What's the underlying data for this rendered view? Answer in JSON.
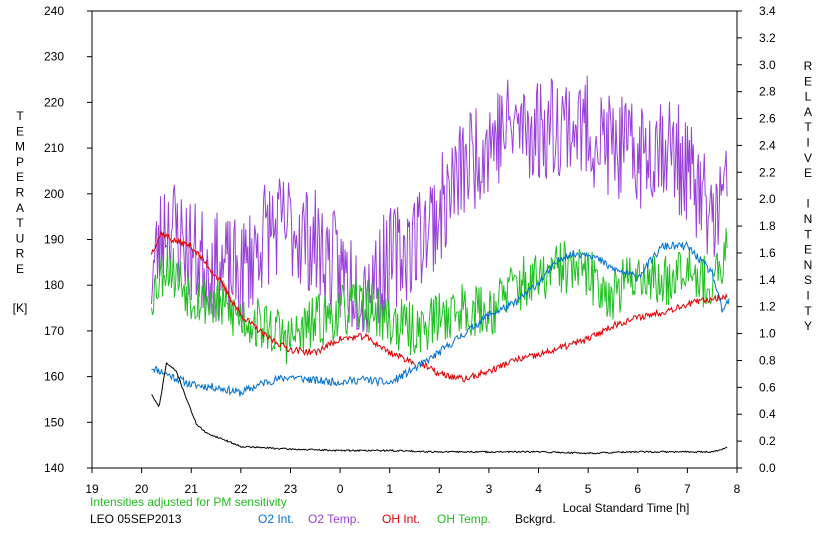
{
  "chart_data": {
    "type": "line",
    "xlabel": "Local Standard Time [h]",
    "x_ticks": [
      "19",
      "20",
      "21",
      "22",
      "23",
      "0",
      "1",
      "2",
      "3",
      "4",
      "5",
      "6",
      "7",
      "8"
    ],
    "xlim": [
      19,
      32
    ],
    "left_axis": {
      "label": "TEMPERATURE",
      "unit": "[K]",
      "ylim": [
        140,
        240
      ],
      "ticks": [
        "140",
        "150",
        "160",
        "170",
        "180",
        "190",
        "200",
        "210",
        "220",
        "230",
        "240"
      ]
    },
    "right_axis": {
      "label": "RELATIVE INTENSITY",
      "ylim": [
        0,
        3.4
      ],
      "ticks": [
        "0.0",
        "0.2",
        "0.4",
        "0.6",
        "0.8",
        "1.0",
        "1.2",
        "1.4",
        "1.6",
        "1.8",
        "2.0",
        "2.2",
        "2.4",
        "2.6",
        "2.8",
        "3.0",
        "3.2",
        "3.4"
      ]
    },
    "note": "Intensities adjusted for PM sensitivity",
    "station": "LEO 05SEP2013",
    "series": [
      {
        "name": "O2 Int.",
        "color": "#0070d0",
        "axis": "right",
        "noise": 0.03,
        "seed": 11,
        "x": [
          20.2,
          20.5,
          21.0,
          21.5,
          22.0,
          22.5,
          23.0,
          23.5,
          24.0,
          24.5,
          25.0,
          25.4,
          25.6,
          26.0,
          26.5,
          27.0,
          27.5,
          28.0,
          28.5,
          29.0,
          29.5,
          30.0,
          30.5,
          31.0,
          31.5,
          31.7,
          31.85
        ],
        "y": [
          0.75,
          0.7,
          0.62,
          0.6,
          0.56,
          0.64,
          0.68,
          0.65,
          0.64,
          0.66,
          0.63,
          0.72,
          0.76,
          0.86,
          1.0,
          1.14,
          1.22,
          1.38,
          1.58,
          1.6,
          1.48,
          1.42,
          1.65,
          1.65,
          1.45,
          1.17,
          1.25
        ]
      },
      {
        "name": "O2 Temp.",
        "color": "#9940d8",
        "axis": "left",
        "noise": 12,
        "seed": 23,
        "x": [
          20.2,
          20.5,
          21.0,
          21.5,
          22.0,
          22.5,
          23.0,
          23.5,
          24.0,
          24.5,
          25.0,
          25.5,
          26.0,
          26.5,
          27.0,
          27.5,
          28.0,
          28.5,
          29.0,
          29.5,
          30.0,
          30.5,
          31.0,
          31.5,
          31.8
        ],
        "y": [
          182,
          195,
          187,
          184,
          182,
          192,
          193,
          189,
          183,
          180,
          185,
          190,
          196,
          206,
          212,
          215,
          214,
          216,
          214,
          210,
          208,
          212,
          205,
          194,
          200
        ]
      },
      {
        "name": "OH Int.",
        "color": "#e00000",
        "axis": "right",
        "noise": 0.025,
        "seed": 37,
        "gap": [
          25.5,
          25.6
        ],
        "x": [
          20.2,
          20.4,
          20.6,
          21.0,
          21.3,
          21.6,
          22.0,
          22.5,
          23.0,
          23.5,
          24.0,
          24.5,
          25.0,
          25.4,
          25.6,
          26.0,
          26.5,
          27.0,
          27.5,
          28.0,
          28.5,
          29.0,
          29.5,
          30.0,
          30.5,
          31.0,
          31.5,
          31.8
        ],
        "y": [
          1.6,
          1.75,
          1.7,
          1.65,
          1.52,
          1.38,
          1.14,
          0.98,
          0.88,
          0.86,
          0.96,
          0.98,
          0.86,
          0.8,
          0.78,
          0.7,
          0.66,
          0.72,
          0.8,
          0.84,
          0.9,
          0.96,
          1.06,
          1.12,
          1.16,
          1.22,
          1.26,
          1.28
        ]
      },
      {
        "name": "OH Temp.",
        "color": "#20c020",
        "axis": "left",
        "noise": 6,
        "seed": 53,
        "x": [
          20.2,
          20.5,
          21.0,
          21.5,
          22.0,
          22.5,
          23.0,
          23.5,
          24.0,
          24.5,
          25.0,
          25.5,
          26.0,
          26.5,
          27.0,
          27.5,
          28.0,
          28.5,
          29.0,
          29.5,
          30.0,
          30.5,
          31.0,
          31.5,
          31.8
        ],
        "y": [
          178,
          185,
          178,
          176,
          173,
          171,
          168,
          172,
          174,
          176,
          172,
          170,
          173,
          175,
          174,
          180,
          181,
          184,
          182,
          178,
          183,
          180,
          186,
          178,
          188
        ]
      },
      {
        "name": "Bckgrd.",
        "color": "#000000",
        "axis": "right",
        "noise": 0.006,
        "seed": 71,
        "x": [
          20.2,
          20.35,
          20.5,
          20.7,
          20.9,
          21.1,
          21.3,
          21.6,
          22.0,
          22.5,
          23.0,
          24.0,
          25.0,
          26.0,
          27.0,
          28.0,
          29.0,
          30.0,
          31.0,
          31.5,
          31.8
        ],
        "y": [
          0.55,
          0.45,
          0.78,
          0.72,
          0.52,
          0.33,
          0.26,
          0.22,
          0.16,
          0.15,
          0.14,
          0.13,
          0.13,
          0.12,
          0.12,
          0.12,
          0.11,
          0.12,
          0.12,
          0.12,
          0.15
        ]
      }
    ]
  }
}
